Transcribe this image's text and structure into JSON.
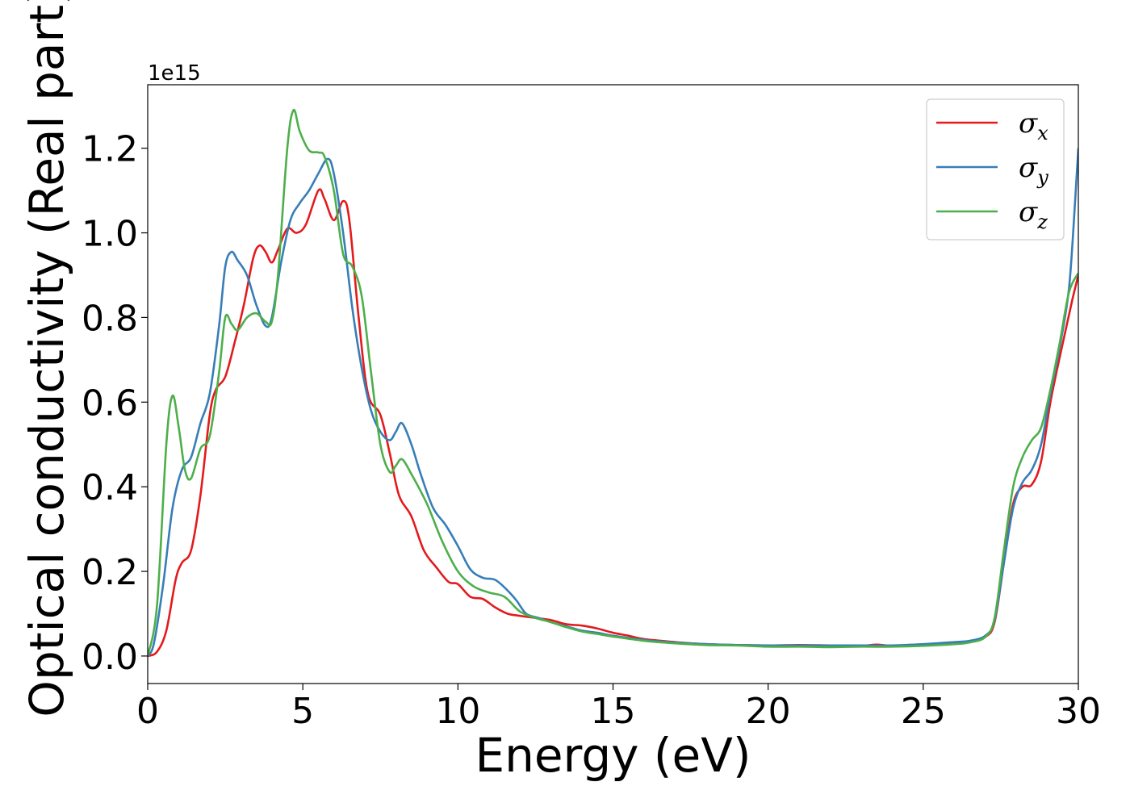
{
  "chart_data": {
    "type": "line",
    "xlabel": "Energy (eV)",
    "ylabel": "Optical conductivity (Real part)",
    "y_offset_label": "1e15",
    "xlim": [
      0,
      30
    ],
    "ylim": [
      -0.065,
      1.35
    ],
    "x_ticks": [
      0,
      5,
      10,
      15,
      20,
      25,
      30
    ],
    "x_tick_labels": [
      "0",
      "5",
      "10",
      "15",
      "20",
      "25",
      "30"
    ],
    "y_ticks": [
      0.0,
      0.2,
      0.4,
      0.6,
      0.8,
      1.0,
      1.2
    ],
    "y_tick_labels": [
      "0.0",
      "0.2",
      "0.4",
      "0.6",
      "0.8",
      "1.0",
      "1.2"
    ],
    "grid": false,
    "legend_position": "top-right",
    "series": [
      {
        "name": "σx",
        "legend_symbol": "σ",
        "legend_sub": "x",
        "color": "#e41a1c",
        "points": [
          [
            0,
            0
          ],
          [
            0.3,
            0.01
          ],
          [
            0.6,
            0.06
          ],
          [
            0.9,
            0.18
          ],
          [
            1.1,
            0.22
          ],
          [
            1.4,
            0.25
          ],
          [
            1.7,
            0.38
          ],
          [
            2.0,
            0.57
          ],
          [
            2.2,
            0.63
          ],
          [
            2.5,
            0.66
          ],
          [
            2.8,
            0.74
          ],
          [
            3.1,
            0.83
          ],
          [
            3.4,
            0.94
          ],
          [
            3.6,
            0.97
          ],
          [
            3.8,
            0.955
          ],
          [
            4.0,
            0.93
          ],
          [
            4.2,
            0.96
          ],
          [
            4.5,
            1.01
          ],
          [
            4.8,
            1.0
          ],
          [
            5.1,
            1.02
          ],
          [
            5.5,
            1.1
          ],
          [
            5.7,
            1.08
          ],
          [
            6.0,
            1.03
          ],
          [
            6.3,
            1.075
          ],
          [
            6.5,
            1.03
          ],
          [
            6.8,
            0.8
          ],
          [
            7.1,
            0.62
          ],
          [
            7.5,
            0.57
          ],
          [
            7.8,
            0.48
          ],
          [
            8.1,
            0.38
          ],
          [
            8.5,
            0.33
          ],
          [
            8.9,
            0.25
          ],
          [
            9.3,
            0.21
          ],
          [
            9.7,
            0.175
          ],
          [
            10.0,
            0.17
          ],
          [
            10.4,
            0.14
          ],
          [
            10.8,
            0.135
          ],
          [
            11.2,
            0.115
          ],
          [
            11.6,
            0.1
          ],
          [
            12.0,
            0.095
          ],
          [
            12.5,
            0.09
          ],
          [
            13.0,
            0.085
          ],
          [
            13.5,
            0.075
          ],
          [
            14.0,
            0.072
          ],
          [
            14.5,
            0.065
          ],
          [
            15.0,
            0.055
          ],
          [
            15.5,
            0.048
          ],
          [
            16.0,
            0.04
          ],
          [
            17.0,
            0.033
          ],
          [
            18.0,
            0.028
          ],
          [
            19.0,
            0.026
          ],
          [
            20.0,
            0.025
          ],
          [
            21.0,
            0.026
          ],
          [
            22.0,
            0.025
          ],
          [
            23.0,
            0.024
          ],
          [
            23.5,
            0.027
          ],
          [
            24.0,
            0.024
          ],
          [
            25.0,
            0.025
          ],
          [
            26.0,
            0.03
          ],
          [
            26.5,
            0.033
          ],
          [
            27.0,
            0.045
          ],
          [
            27.3,
            0.08
          ],
          [
            27.6,
            0.22
          ],
          [
            27.9,
            0.36
          ],
          [
            28.2,
            0.4
          ],
          [
            28.5,
            0.405
          ],
          [
            28.8,
            0.46
          ],
          [
            29.1,
            0.6
          ],
          [
            29.5,
            0.74
          ],
          [
            29.8,
            0.84
          ],
          [
            30.0,
            0.9
          ]
        ]
      },
      {
        "name": "σy",
        "legend_symbol": "σ",
        "legend_sub": "y",
        "color": "#377eb8",
        "points": [
          [
            0,
            0
          ],
          [
            0.2,
            0.03
          ],
          [
            0.5,
            0.17
          ],
          [
            0.8,
            0.35
          ],
          [
            1.1,
            0.44
          ],
          [
            1.4,
            0.47
          ],
          [
            1.7,
            0.55
          ],
          [
            2.0,
            0.62
          ],
          [
            2.3,
            0.78
          ],
          [
            2.5,
            0.92
          ],
          [
            2.7,
            0.955
          ],
          [
            2.9,
            0.935
          ],
          [
            3.2,
            0.9
          ],
          [
            3.5,
            0.83
          ],
          [
            3.8,
            0.78
          ],
          [
            4.0,
            0.8
          ],
          [
            4.3,
            0.93
          ],
          [
            4.6,
            1.03
          ],
          [
            4.9,
            1.07
          ],
          [
            5.2,
            1.1
          ],
          [
            5.5,
            1.14
          ],
          [
            5.8,
            1.175
          ],
          [
            6.0,
            1.14
          ],
          [
            6.3,
            1.0
          ],
          [
            6.6,
            0.82
          ],
          [
            6.9,
            0.68
          ],
          [
            7.2,
            0.58
          ],
          [
            7.5,
            0.53
          ],
          [
            7.8,
            0.51
          ],
          [
            8.0,
            0.53
          ],
          [
            8.2,
            0.55
          ],
          [
            8.5,
            0.5
          ],
          [
            8.8,
            0.43
          ],
          [
            9.2,
            0.35
          ],
          [
            9.6,
            0.31
          ],
          [
            10.0,
            0.26
          ],
          [
            10.4,
            0.205
          ],
          [
            10.8,
            0.185
          ],
          [
            11.2,
            0.18
          ],
          [
            11.6,
            0.155
          ],
          [
            11.9,
            0.13
          ],
          [
            12.2,
            0.1
          ],
          [
            12.6,
            0.09
          ],
          [
            13.0,
            0.08
          ],
          [
            13.5,
            0.07
          ],
          [
            14.0,
            0.06
          ],
          [
            14.5,
            0.055
          ],
          [
            15.0,
            0.048
          ],
          [
            16.0,
            0.038
          ],
          [
            17.0,
            0.032
          ],
          [
            18.0,
            0.028
          ],
          [
            19.0,
            0.026
          ],
          [
            20.0,
            0.025
          ],
          [
            21.0,
            0.025
          ],
          [
            22.0,
            0.025
          ],
          [
            23.0,
            0.025
          ],
          [
            24.0,
            0.025
          ],
          [
            25.0,
            0.028
          ],
          [
            26.0,
            0.033
          ],
          [
            26.5,
            0.036
          ],
          [
            27.0,
            0.048
          ],
          [
            27.3,
            0.085
          ],
          [
            27.6,
            0.22
          ],
          [
            27.9,
            0.35
          ],
          [
            28.2,
            0.41
          ],
          [
            28.5,
            0.44
          ],
          [
            28.8,
            0.5
          ],
          [
            29.1,
            0.62
          ],
          [
            29.4,
            0.73
          ],
          [
            29.7,
            0.87
          ],
          [
            29.9,
            1.08
          ],
          [
            30.0,
            1.2
          ]
        ]
      },
      {
        "name": "σz",
        "legend_symbol": "σ",
        "legend_sub": "z",
        "color": "#4daf4a",
        "points": [
          [
            0,
            0
          ],
          [
            0.3,
            0.12
          ],
          [
            0.6,
            0.5
          ],
          [
            0.8,
            0.615
          ],
          [
            1.0,
            0.54
          ],
          [
            1.2,
            0.44
          ],
          [
            1.4,
            0.42
          ],
          [
            1.7,
            0.49
          ],
          [
            2.0,
            0.52
          ],
          [
            2.3,
            0.67
          ],
          [
            2.5,
            0.8
          ],
          [
            2.7,
            0.785
          ],
          [
            2.9,
            0.77
          ],
          [
            3.2,
            0.8
          ],
          [
            3.5,
            0.81
          ],
          [
            3.8,
            0.79
          ],
          [
            4.0,
            0.79
          ],
          [
            4.2,
            0.9
          ],
          [
            4.5,
            1.2
          ],
          [
            4.7,
            1.29
          ],
          [
            4.9,
            1.24
          ],
          [
            5.2,
            1.195
          ],
          [
            5.5,
            1.19
          ],
          [
            5.7,
            1.18
          ],
          [
            6.0,
            1.1
          ],
          [
            6.3,
            0.95
          ],
          [
            6.6,
            0.92
          ],
          [
            6.9,
            0.85
          ],
          [
            7.2,
            0.67
          ],
          [
            7.5,
            0.5
          ],
          [
            7.8,
            0.435
          ],
          [
            8.0,
            0.45
          ],
          [
            8.2,
            0.465
          ],
          [
            8.5,
            0.43
          ],
          [
            9.0,
            0.36
          ],
          [
            9.5,
            0.27
          ],
          [
            10.0,
            0.2
          ],
          [
            10.5,
            0.165
          ],
          [
            11.0,
            0.15
          ],
          [
            11.5,
            0.14
          ],
          [
            12.0,
            0.105
          ],
          [
            12.5,
            0.09
          ],
          [
            13.0,
            0.08
          ],
          [
            13.5,
            0.068
          ],
          [
            14.0,
            0.058
          ],
          [
            14.5,
            0.052
          ],
          [
            15.0,
            0.046
          ],
          [
            16.0,
            0.036
          ],
          [
            17.0,
            0.03
          ],
          [
            18.0,
            0.026
          ],
          [
            19.0,
            0.025
          ],
          [
            20.0,
            0.022
          ],
          [
            21.0,
            0.022
          ],
          [
            22.0,
            0.021
          ],
          [
            23.0,
            0.022
          ],
          [
            24.0,
            0.022
          ],
          [
            25.0,
            0.024
          ],
          [
            26.0,
            0.028
          ],
          [
            26.5,
            0.032
          ],
          [
            27.0,
            0.045
          ],
          [
            27.3,
            0.09
          ],
          [
            27.6,
            0.25
          ],
          [
            27.9,
            0.4
          ],
          [
            28.2,
            0.47
          ],
          [
            28.5,
            0.51
          ],
          [
            28.8,
            0.54
          ],
          [
            29.1,
            0.63
          ],
          [
            29.4,
            0.74
          ],
          [
            29.7,
            0.86
          ],
          [
            30.0,
            0.905
          ]
        ]
      }
    ]
  }
}
